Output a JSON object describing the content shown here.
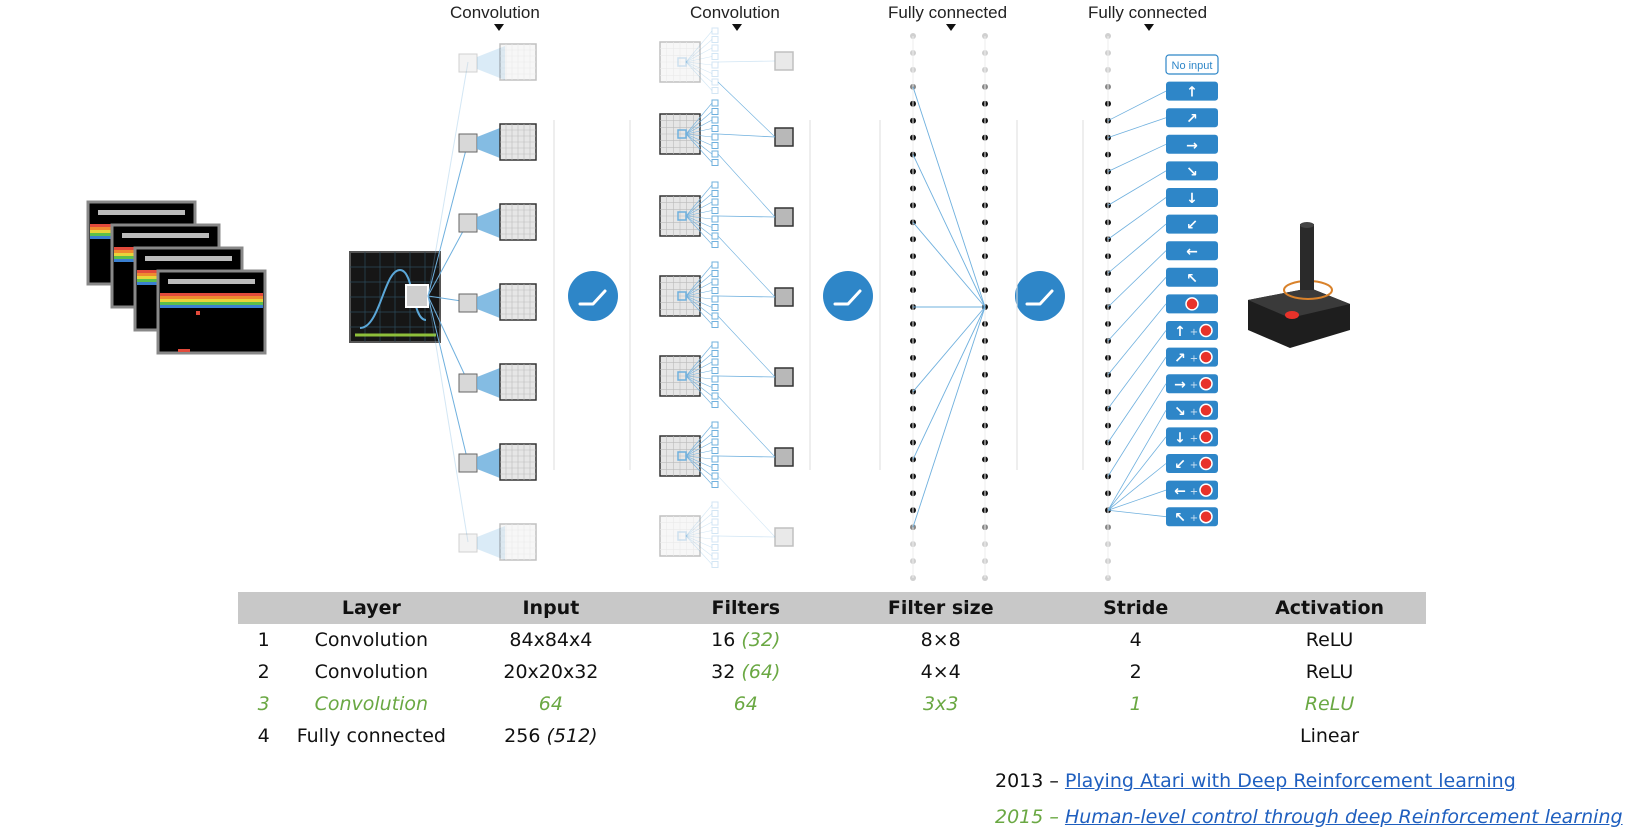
{
  "stage_labels": [
    "Convolution",
    "Convolution",
    "Fully connected",
    "Fully connected"
  ],
  "actions": [
    "No input",
    "↑",
    "↗",
    "→",
    "↘",
    "↓",
    "↙",
    "←",
    "↖",
    "●",
    "↑+●",
    "↗+●",
    "→+●",
    "↘+●",
    "↓+●",
    "↙+●",
    "←+●",
    "↖+●"
  ],
  "colors": {
    "accent_blue": "#2e86c8",
    "line_blue": "#6fb0de",
    "green": "#6aa843",
    "link": "#1f5fbf",
    "table_header": "#c8c8c8",
    "fire_red": "#e8322a"
  },
  "icons": [
    "relu-icon",
    "joystick-icon",
    "game-frames-icon"
  ],
  "table": {
    "headers": [
      "",
      "Layer",
      "Input",
      "Filters",
      "Filter size",
      "Stride",
      "Activation"
    ],
    "rows": [
      {
        "num": "1",
        "layer": "Convolution",
        "input": "84x84x4",
        "input_alt": "",
        "filters": "16",
        "filters_alt": "(32)",
        "filter_size": "8×8",
        "stride": "4",
        "activation": "ReLU"
      },
      {
        "num": "2",
        "layer": "Convolution",
        "input": "20x20x32",
        "input_alt": "",
        "filters": "32",
        "filters_alt": "(64)",
        "filter_size": "4×4",
        "stride": "2",
        "activation": "ReLU"
      },
      {
        "num": "3",
        "layer": "Convolution",
        "input": "64",
        "input_alt": "",
        "filters": "64",
        "filters_alt": "",
        "filter_size": "3x3",
        "stride": "1",
        "activation": "ReLU"
      },
      {
        "num": "4",
        "layer": "Fully connected",
        "input": "256",
        "input_alt": "(512)",
        "filters": "",
        "filters_alt": "",
        "filter_size": "",
        "stride": "",
        "activation": "Linear"
      }
    ]
  },
  "references": [
    {
      "year": "2013 – ",
      "title": "Playing Atari with Deep Reinforcement learning"
    },
    {
      "year": "2015 – ",
      "title": "Human-level control through deep Reinforcement learning"
    }
  ]
}
